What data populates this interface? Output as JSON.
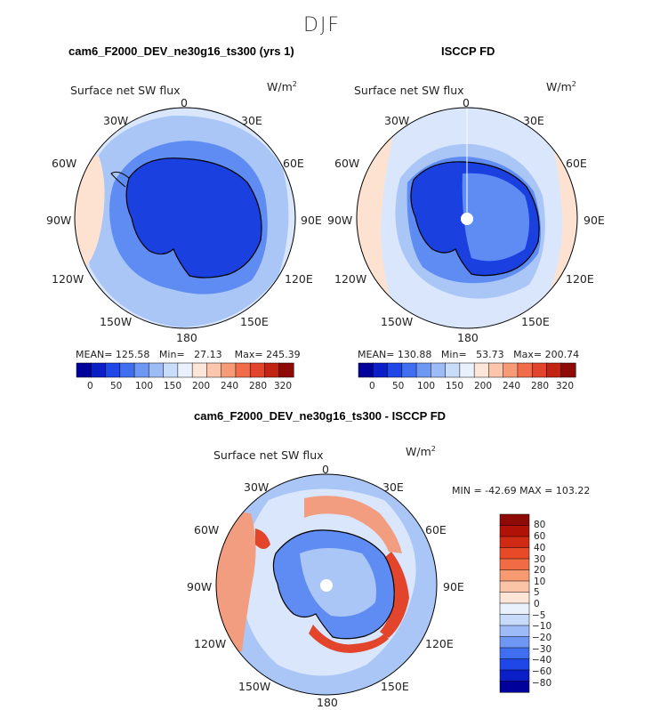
{
  "figure_title": "DJF",
  "colors": {
    "ice": "#1a40e0",
    "ice_dark": "#0a2fd0",
    "ocean_mid": "#5f8cf2",
    "ocean_light": "#a9c6f7",
    "ocean_pale": "#d9e6fb",
    "warm_pale": "#fde2d2",
    "warm": "#f29c80",
    "warm_strong": "#e2452b",
    "warm_dark": "#b01208",
    "blue_dark": "#00009a"
  },
  "panels": [
    {
      "title": "cam6_F2000_DEV_ne30g16_ts300 (yrs 1)",
      "variable": "Surface net SW flux",
      "units_main": "W/m",
      "units_exp": "2",
      "lon_labels": [
        "0",
        "30E",
        "60E",
        "90E",
        "120E",
        "150E",
        "180",
        "150W",
        "120W",
        "90W",
        "60W",
        "30W"
      ],
      "mean_label": "MEAN=",
      "mean": "125.58",
      "min_label": "Min=",
      "min": "27.13",
      "max_label": "Max=",
      "max": "245.39",
      "colorbar_ticks": [
        "0",
        "50",
        "100",
        "150",
        "200",
        "240",
        "280",
        "320"
      ]
    },
    {
      "title": "ISCCP FD",
      "variable": "Surface net SW flux",
      "units_main": "W/m",
      "units_exp": "2",
      "lon_labels": [
        "0",
        "30E",
        "60E",
        "90E",
        "120E",
        "150E",
        "180",
        "150W",
        "120W",
        "90W",
        "60W",
        "30W"
      ],
      "mean_label": "MEAN=",
      "mean": "130.88",
      "min_label": "Min=",
      "min": "53.73",
      "max_label": "Max=",
      "max": "200.74",
      "colorbar_ticks": [
        "0",
        "50",
        "100",
        "150",
        "200",
        "240",
        "280",
        "320"
      ]
    },
    {
      "title": "cam6_F2000_DEV_ne30g16_ts300 - ISCCP FD",
      "variable": "Surface net SW flux",
      "units_main": "W/m",
      "units_exp": "2",
      "lon_labels": [
        "0",
        "30E",
        "60E",
        "90E",
        "120E",
        "150E",
        "180",
        "150W",
        "120W",
        "90W",
        "60W",
        "30W"
      ],
      "minmax_text": "MIN = -42.69  MAX = 103.22",
      "colorbar_ticks": [
        "80",
        "60",
        "40",
        "30",
        "20",
        "10",
        "5",
        "0",
        "−5",
        "−10",
        "−20",
        "−30",
        "−40",
        "−60",
        "−80"
      ]
    }
  ],
  "colorbar_top": [
    "#00009a",
    "#0a1fc8",
    "#1f46e6",
    "#3f6ef0",
    "#6e97f4",
    "#9dbcf7",
    "#c9dcfa",
    "#e9f1fd",
    "#fde6d8",
    "#fbc6ab",
    "#f79a76",
    "#f26c4a",
    "#e2452b",
    "#c22414",
    "#8e0a06"
  ],
  "colorbar_diff": [
    "#8e0a06",
    "#b01208",
    "#d02a14",
    "#e84a28",
    "#f16c44",
    "#f79a72",
    "#fbc4a6",
    "#fde6d8",
    "#e9f1fd",
    "#c7daf9",
    "#9dbcf7",
    "#6e97f4",
    "#3f6ef0",
    "#1f46e6",
    "#0a1fc8",
    "#00009a"
  ]
}
